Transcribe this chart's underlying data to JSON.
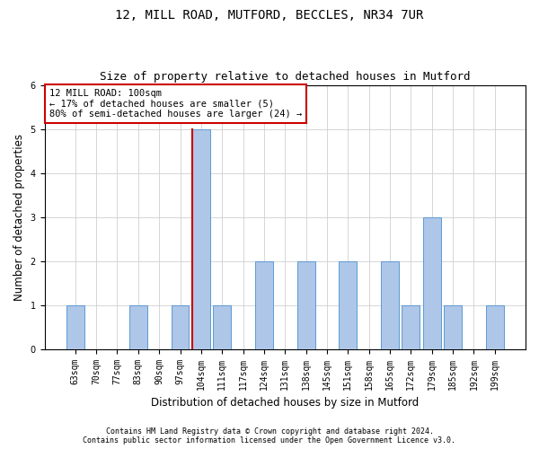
{
  "title1": "12, MILL ROAD, MUTFORD, BECCLES, NR34 7UR",
  "title2": "Size of property relative to detached houses in Mutford",
  "xlabel": "Distribution of detached houses by size in Mutford",
  "ylabel": "Number of detached properties",
  "categories": [
    "63sqm",
    "70sqm",
    "77sqm",
    "83sqm",
    "90sqm",
    "97sqm",
    "104sqm",
    "111sqm",
    "117sqm",
    "124sqm",
    "131sqm",
    "138sqm",
    "145sqm",
    "151sqm",
    "158sqm",
    "165sqm",
    "172sqm",
    "179sqm",
    "185sqm",
    "192sqm",
    "199sqm"
  ],
  "values": [
    1,
    0,
    0,
    1,
    0,
    1,
    5,
    1,
    0,
    2,
    0,
    2,
    0,
    2,
    0,
    2,
    1,
    3,
    1,
    0,
    1
  ],
  "bar_color": "#aec6e8",
  "bar_edge_color": "#5b9bd5",
  "subject_bar_index": 6,
  "subject_line_color": "#cc0000",
  "annotation_text": "12 MILL ROAD: 100sqm\n← 17% of detached houses are smaller (5)\n80% of semi-detached houses are larger (24) →",
  "annotation_box_color": "#ffffff",
  "annotation_box_edge_color": "#cc0000",
  "ylim": [
    0,
    6
  ],
  "yticks": [
    0,
    1,
    2,
    3,
    4,
    5,
    6
  ],
  "footer1": "Contains HM Land Registry data © Crown copyright and database right 2024.",
  "footer2": "Contains public sector information licensed under the Open Government Licence v3.0.",
  "background_color": "#ffffff",
  "grid_color": "#d0d0d0",
  "title1_fontsize": 10,
  "title2_fontsize": 9,
  "xlabel_fontsize": 8.5,
  "ylabel_fontsize": 8.5,
  "tick_fontsize": 7,
  "annotation_fontsize": 7.5,
  "footer_fontsize": 6
}
